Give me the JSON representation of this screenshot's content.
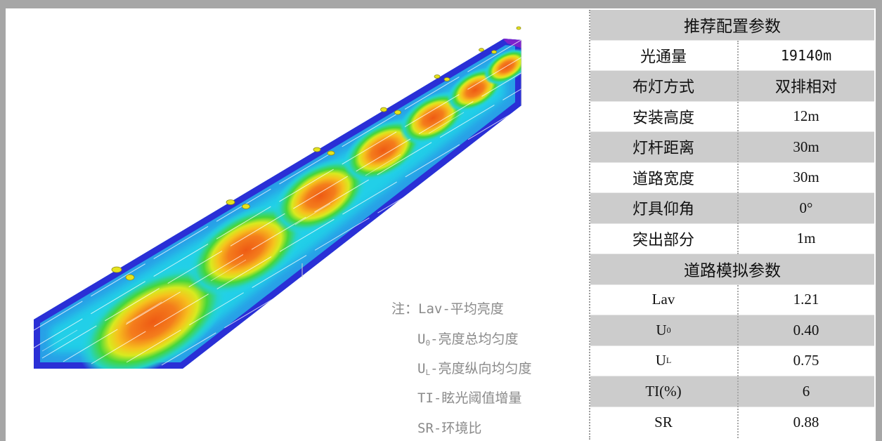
{
  "config": {
    "title": "推荐配置参数",
    "rows": [
      {
        "label": "光通量",
        "value": "19140m"
      },
      {
        "label": "布灯方式",
        "value": "双排相对"
      },
      {
        "label": "安装高度",
        "value": "12m"
      },
      {
        "label": "灯杆距离",
        "value": "30m"
      },
      {
        "label": "道路宽度",
        "value": "30m"
      },
      {
        "label": "灯具仰角",
        "value": "0°"
      },
      {
        "label": "突出部分",
        "value": "1m"
      }
    ]
  },
  "simulation": {
    "title": "道路模拟参数",
    "rows": [
      {
        "label": "Lav",
        "value": "1.21"
      },
      {
        "label_main": "U",
        "label_sub": "0",
        "value": "0.40"
      },
      {
        "label_main": "U",
        "label_sub": "L",
        "value": "0.75"
      },
      {
        "label": "TI(%)",
        "value": "6"
      },
      {
        "label": "SR",
        "value": "0.88"
      }
    ]
  },
  "notes": {
    "prefix": "注：",
    "items": [
      {
        "main": "Lav",
        "rest": "-平均亮度"
      },
      {
        "main": "U",
        "sub": "0",
        "rest": "-亮度总均匀度"
      },
      {
        "main": "U",
        "sub": "L",
        "rest": "-亮度纵向均匀度"
      },
      {
        "main": "TI",
        "rest": "-眩光阈值增量"
      },
      {
        "main": "SR",
        "rest": "-环境比"
      }
    ]
  },
  "colors": {
    "frame": "#a6a6a6",
    "row_gray": "#cccccc",
    "note_text": "#8a8a8a",
    "heat_high": "#f26a1b",
    "heat_mid": "#f0e81c",
    "heat_low": "#27d5e8",
    "heat_min": "#2a2fd6"
  }
}
